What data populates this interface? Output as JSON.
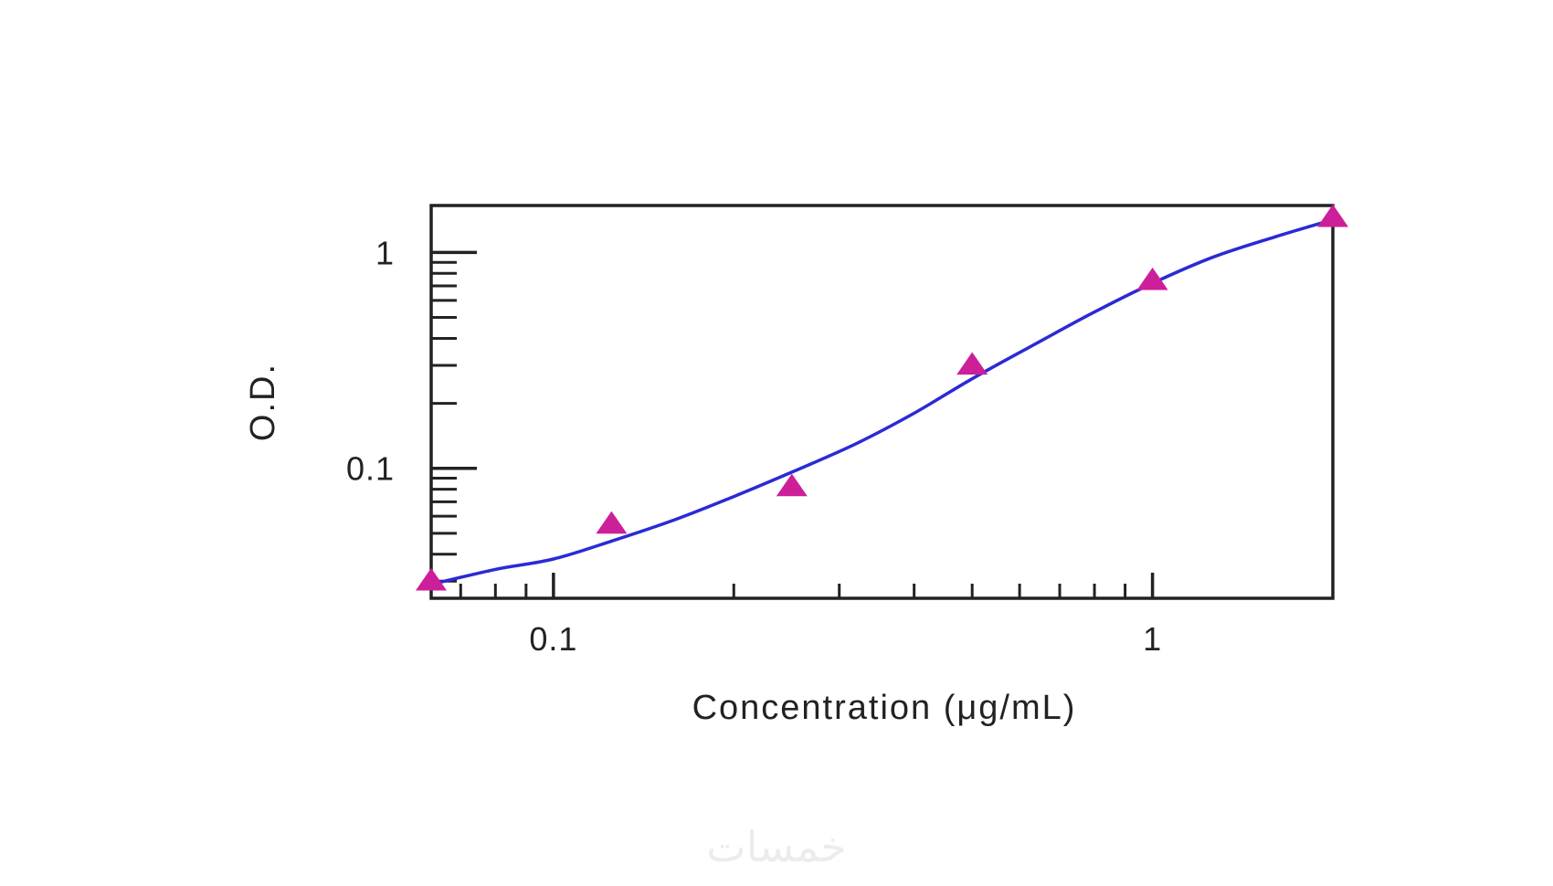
{
  "chart_data": {
    "type": "scatter",
    "title": "",
    "xlabel": "Concentration (μg/mL)",
    "ylabel": "O.D.",
    "xscale": "log",
    "yscale": "log",
    "xlim": [
      0.0625,
      2
    ],
    "ylim": [
      0.025,
      1.65
    ],
    "grid": false,
    "x_ticks": [
      {
        "value": 0.1,
        "label": "0.1"
      },
      {
        "value": 1,
        "label": "1"
      }
    ],
    "y_ticks": [
      {
        "value": 0.1,
        "label": "0.1"
      },
      {
        "value": 1,
        "label": "1"
      }
    ],
    "series": [
      {
        "marker": "triangle",
        "color": "#cc1f99",
        "x": [
          0.0625,
          0.125,
          0.25,
          0.5,
          1,
          2
        ],
        "y": [
          0.03,
          0.055,
          0.082,
          0.3,
          0.74,
          1.45
        ]
      },
      {
        "line": "fit-curve",
        "color": "#2a2ad6",
        "x": [
          0.0625,
          0.08,
          0.1,
          0.125,
          0.16,
          0.2,
          0.25,
          0.32,
          0.4,
          0.5,
          0.63,
          0.8,
          1,
          1.26,
          1.6,
          2
        ],
        "y": [
          0.029,
          0.034,
          0.038,
          0.046,
          0.058,
          0.074,
          0.096,
          0.13,
          0.18,
          0.26,
          0.37,
          0.53,
          0.72,
          0.95,
          1.18,
          1.42
        ]
      }
    ]
  },
  "colors": {
    "axis": "#222222",
    "marker": "#cc1f99",
    "fit_line": "#2a2ad6"
  },
  "watermark": "خمسات"
}
